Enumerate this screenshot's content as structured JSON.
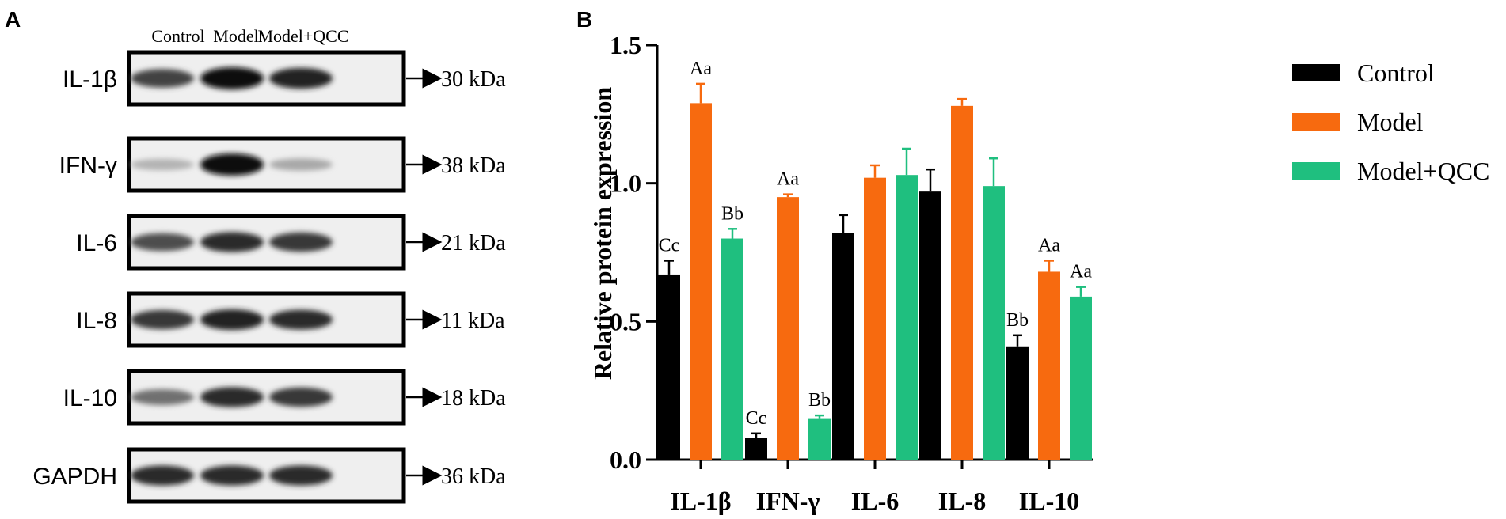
{
  "panels": {
    "a_label": "A",
    "b_label": "B"
  },
  "colors": {
    "Control": "#000000",
    "Model": "#f76a0f",
    "Model+QCC": "#1fbf7f"
  },
  "western_blot": {
    "lane_labels": [
      "Control",
      "Model",
      "Model+QCC"
    ],
    "rows": [
      {
        "protein": "IL-1β",
        "weight": "30 kDa",
        "intensity": [
          0.75,
          1.0,
          0.9
        ]
      },
      {
        "protein": "IFN-γ",
        "weight": "38 kDa",
        "intensity": [
          0.25,
          1.0,
          0.3
        ]
      },
      {
        "protein": "IL-6",
        "weight": "21 kDa",
        "intensity": [
          0.7,
          0.85,
          0.8
        ]
      },
      {
        "protein": "IL-8",
        "weight": "11 kDa",
        "intensity": [
          0.8,
          0.9,
          0.85
        ]
      },
      {
        "protein": "IL-10",
        "weight": "18 kDa",
        "intensity": [
          0.55,
          0.85,
          0.8
        ]
      },
      {
        "protein": "GAPDH",
        "weight": "36 kDa",
        "intensity": [
          0.85,
          0.85,
          0.85
        ]
      }
    ]
  },
  "chart_data": {
    "type": "bar",
    "title": "",
    "xlabel": "",
    "ylabel": "Relative protein expression",
    "ylim": [
      0,
      1.5
    ],
    "yticks": [
      "0.0",
      "0.5",
      "1.0",
      "1.5"
    ],
    "legend_position": "top-right",
    "categories": [
      "IL-1β",
      "IFN-γ",
      "IL-6",
      "IL-8",
      "IL-10"
    ],
    "series": [
      {
        "name": "Control",
        "values": [
          0.67,
          0.08,
          0.82,
          0.97,
          0.41
        ],
        "errors": [
          0.05,
          0.015,
          0.065,
          0.08,
          0.04
        ],
        "labels": [
          "Cc",
          "Cc",
          "",
          "",
          "Bb"
        ]
      },
      {
        "name": "Model",
        "values": [
          1.29,
          0.95,
          1.02,
          1.28,
          0.68
        ],
        "errors": [
          0.07,
          0.01,
          0.045,
          0.025,
          0.04
        ],
        "labels": [
          "Aa",
          "Aa",
          "",
          "",
          "Aa"
        ]
      },
      {
        "name": "Model+QCC",
        "values": [
          0.8,
          0.15,
          1.03,
          0.99,
          0.59
        ],
        "errors": [
          0.035,
          0.01,
          0.095,
          0.1,
          0.035
        ],
        "labels": [
          "Bb",
          "Bb",
          "",
          "",
          "Aa"
        ]
      }
    ]
  }
}
